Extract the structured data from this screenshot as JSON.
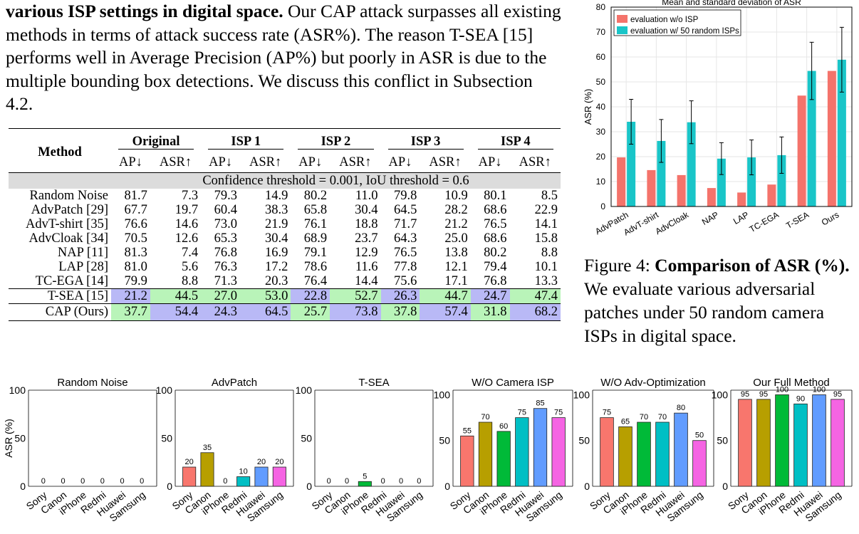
{
  "intro": {
    "bold_lead": "various ISP settings in digital space.",
    "text_rest": " Our CAP attack surpasses all existing methods in terms of attack success rate (ASR%). The reason T-SEA [15] performs well in Average Precision (AP%) but poorly in ASR is due to the multiple bounding box detections. We discuss this conflict in Subsection 4.2."
  },
  "table": {
    "method_header": "Method",
    "groups": [
      "Original",
      "ISP 1",
      "ISP 2",
      "ISP 3",
      "ISP 4"
    ],
    "sub_headers": [
      "AP↓",
      "ASR↑"
    ],
    "threshold_row": "Confidence threshold = 0.001, IoU threshold = 0.6",
    "rows": [
      {
        "method": "Random Noise",
        "values": [
          "81.7",
          "7.3",
          "79.3",
          "14.9",
          "80.2",
          "11.0",
          "79.8",
          "10.9",
          "80.1",
          "8.5"
        ],
        "hl": [
          "",
          "",
          "",
          "",
          "",
          "",
          "",
          "",
          "",
          ""
        ]
      },
      {
        "method": "AdvPatch [29]",
        "values": [
          "67.7",
          "19.7",
          "60.4",
          "38.3",
          "65.8",
          "30.4",
          "64.5",
          "28.2",
          "68.6",
          "22.9"
        ],
        "hl": [
          "",
          "",
          "",
          "",
          "",
          "",
          "",
          "",
          "",
          ""
        ]
      },
      {
        "method": "AdvT-shirt [35]",
        "values": [
          "76.6",
          "14.6",
          "73.0",
          "21.9",
          "76.1",
          "18.8",
          "71.7",
          "21.2",
          "76.5",
          "14.1"
        ],
        "hl": [
          "",
          "",
          "",
          "",
          "",
          "",
          "",
          "",
          "",
          ""
        ]
      },
      {
        "method": "AdvCloak [34]",
        "values": [
          "70.5",
          "12.6",
          "65.3",
          "30.4",
          "68.9",
          "23.7",
          "64.3",
          "25.0",
          "68.6",
          "15.8"
        ],
        "hl": [
          "",
          "",
          "",
          "",
          "",
          "",
          "",
          "",
          "",
          ""
        ]
      },
      {
        "method": "NAP [11]",
        "values": [
          "81.3",
          "7.4",
          "76.8",
          "16.9",
          "79.1",
          "12.9",
          "76.5",
          "13.8",
          "80.2",
          "8.8"
        ],
        "hl": [
          "",
          "",
          "",
          "",
          "",
          "",
          "",
          "",
          "",
          ""
        ]
      },
      {
        "method": "LAP [28]",
        "values": [
          "81.0",
          "5.6",
          "76.3",
          "17.2",
          "78.6",
          "11.6",
          "77.8",
          "12.1",
          "79.4",
          "10.1"
        ],
        "hl": [
          "",
          "",
          "",
          "",
          "",
          "",
          "",
          "",
          "",
          ""
        ]
      },
      {
        "method": "TC-EGA [14]",
        "values": [
          "79.9",
          "8.8",
          "71.3",
          "20.3",
          "76.4",
          "14.4",
          "75.6",
          "17.1",
          "76.8",
          "13.3"
        ],
        "hl": [
          "",
          "",
          "",
          "",
          "",
          "",
          "",
          "",
          "",
          ""
        ]
      },
      {
        "method": "T-SEA [15]",
        "values": [
          "21.2",
          "44.5",
          "27.0",
          "53.0",
          "22.8",
          "52.7",
          "26.3",
          "44.7",
          "24.7",
          "47.4"
        ],
        "hl": [
          "cb",
          "cg",
          "cg",
          "cg",
          "cb",
          "cg",
          "cb",
          "cg",
          "cb",
          "cg"
        ]
      },
      {
        "method": "CAP (Ours)",
        "values": [
          "37.7",
          "54.4",
          "24.3",
          "64.5",
          "25.7",
          "73.8",
          "37.8",
          "57.4",
          "31.8",
          "68.2"
        ],
        "hl": [
          "cg",
          "cb",
          "cb",
          "cb",
          "cg",
          "cb",
          "cg",
          "cb",
          "cg",
          "cb"
        ]
      }
    ]
  },
  "figure4": {
    "caption_prefix": "Figure 4: ",
    "caption_bold": "Comparison of ASR (%).",
    "caption_rest": " We evaluate various adversarial patches under 50 random camera ISPs in digital space."
  },
  "chart_data": [
    {
      "type": "bar",
      "title": "Mean and standard deviation of ASR",
      "ylabel": "ASR (%)",
      "ylim": [
        0,
        80
      ],
      "yticks": [
        0,
        10,
        20,
        30,
        40,
        50,
        60,
        70,
        80
      ],
      "grid": true,
      "legend_position": "top-left",
      "categories": [
        "AdvPatch",
        "AdvT-shirt",
        "AdvCloak",
        "NAP",
        "LAP",
        "TC-EGA",
        "T-SEA",
        "Ours"
      ],
      "series": [
        {
          "name": "evaluation w/o ISP",
          "color": "#f4736b",
          "values": [
            19.7,
            14.6,
            12.6,
            7.4,
            5.6,
            8.8,
            44.5,
            54.4
          ]
        },
        {
          "name": "evaluation w/ 50 random ISPs",
          "color": "#19c5c8",
          "values": [
            34.0,
            26.3,
            33.8,
            19.2,
            19.7,
            20.6,
            54.4,
            58.9
          ],
          "std": [
            9.0,
            8.6,
            8.6,
            6.4,
            7.0,
            7.3,
            11.5,
            13.0
          ]
        }
      ]
    },
    {
      "type": "bar",
      "title": "Random Noise",
      "ylabel": "ASR (%)",
      "ylim": [
        0,
        100
      ],
      "yticks": [
        0,
        50,
        100
      ],
      "categories": [
        "Sony",
        "Canon",
        "iPhone",
        "Redmi",
        "Huawei",
        "Samsung"
      ],
      "values": [
        0,
        0,
        0,
        0,
        0,
        0
      ]
    },
    {
      "type": "bar",
      "title": "AdvPatch",
      "ylim": [
        0,
        100
      ],
      "yticks": [
        0,
        50,
        100
      ],
      "categories": [
        "Sony",
        "Canon",
        "iPhone",
        "Redmi",
        "Huawei",
        "Samsung"
      ],
      "values": [
        20,
        35,
        0,
        10,
        20,
        20
      ]
    },
    {
      "type": "bar",
      "title": "T-SEA",
      "ylim": [
        0,
        100
      ],
      "yticks": [
        0,
        50,
        100
      ],
      "categories": [
        "Sony",
        "Canon",
        "iPhone",
        "Redmi",
        "Huawei",
        "Samsung"
      ],
      "values": [
        0,
        0,
        5,
        0,
        0,
        0
      ]
    },
    {
      "type": "bar",
      "title": "W/O Camera ISP",
      "ylim": [
        0,
        105
      ],
      "yticks": [
        0,
        50,
        100
      ],
      "categories": [
        "Sony",
        "Canon",
        "iPhone",
        "Redmi",
        "Huawei",
        "Samsung"
      ],
      "values": [
        55,
        70,
        60,
        75,
        85,
        75
      ]
    },
    {
      "type": "bar",
      "title": "W/O Adv-Optimization",
      "ylim": [
        0,
        105
      ],
      "yticks": [
        0,
        50,
        100
      ],
      "categories": [
        "Sony",
        "Canon",
        "iPhone",
        "Redmi",
        "Huawei",
        "Samsung"
      ],
      "values": [
        75,
        65,
        70,
        70,
        80,
        50
      ]
    },
    {
      "type": "bar",
      "title": "Our Full Method",
      "ylim": [
        0,
        105
      ],
      "yticks": [
        0,
        50,
        100
      ],
      "categories": [
        "Sony",
        "Canon",
        "iPhone",
        "Redmi",
        "Huawei",
        "Samsung"
      ],
      "values": [
        95,
        95,
        100,
        90,
        100,
        95
      ]
    }
  ],
  "device_colors": [
    "#f8766d",
    "#b79f00",
    "#00ba38",
    "#00bfc4",
    "#619cff",
    "#f564e3"
  ]
}
